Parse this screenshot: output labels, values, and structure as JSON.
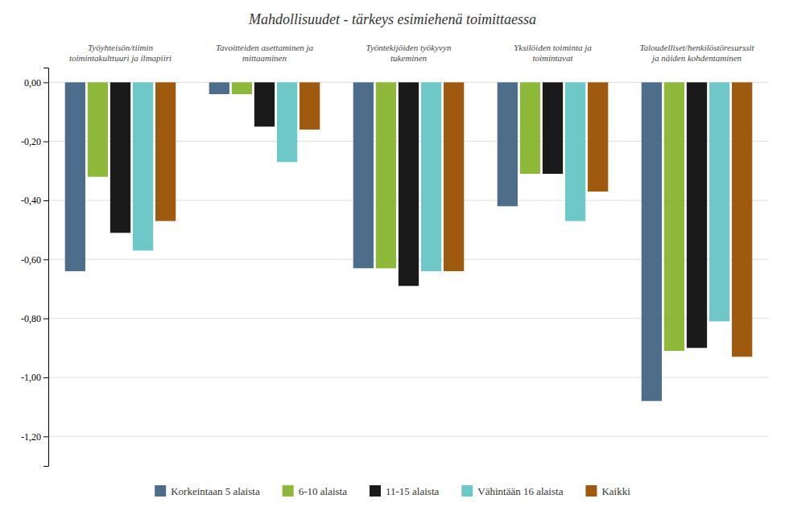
{
  "chart_data": {
    "type": "bar",
    "title": "Mahdollisuudet - tärkeys esimiehenä toimittaessa",
    "categories": [
      "Työyhteisön/tiimin\ntoimintakulttuuri ja ilmapiiri",
      "Tavoitteiden asettaminen ja\nmittaaminen",
      "Työntekijöiden työkyvyn\ntukeminen",
      "Yksilöiden toiminta ja\ntoimintavat",
      "Taloudelliset/henkilöstöresurssit\nja näiden kohdentaminen"
    ],
    "series": [
      {
        "name": "Korkeintaan 5 alaista",
        "color": "#4d6d8a",
        "values": [
          -0.64,
          -0.04,
          -0.63,
          -0.42,
          -1.08
        ]
      },
      {
        "name": "6-10 alaista",
        "color": "#8db83a",
        "values": [
          -0.32,
          -0.04,
          -0.63,
          -0.31,
          -0.91
        ]
      },
      {
        "name": "11-15 alaista",
        "color": "#1a1a1a",
        "values": [
          -0.51,
          -0.15,
          -0.69,
          -0.31,
          -0.9
        ]
      },
      {
        "name": "Vähintään 16 alaista",
        "color": "#6ec8c8",
        "values": [
          -0.57,
          -0.27,
          -0.64,
          -0.47,
          -0.81
        ]
      },
      {
        "name": "Kaikki",
        "color": "#a05a10",
        "values": [
          -0.47,
          -0.16,
          -0.64,
          -0.37,
          -0.93
        ]
      }
    ],
    "ylim": [
      -1.3,
      0.05
    ],
    "yticks": [
      {
        "value": 0.0,
        "label": "0,00"
      },
      {
        "value": -0.2,
        "label": "-0,20"
      },
      {
        "value": -0.4,
        "label": "-0,40"
      },
      {
        "value": -0.6,
        "label": "-0,60"
      },
      {
        "value": -0.8,
        "label": "-0,80"
      },
      {
        "value": -1.0,
        "label": "-1,00"
      },
      {
        "value": -1.2,
        "label": "-1,20"
      }
    ],
    "grid": true,
    "legend": "bottom"
  }
}
